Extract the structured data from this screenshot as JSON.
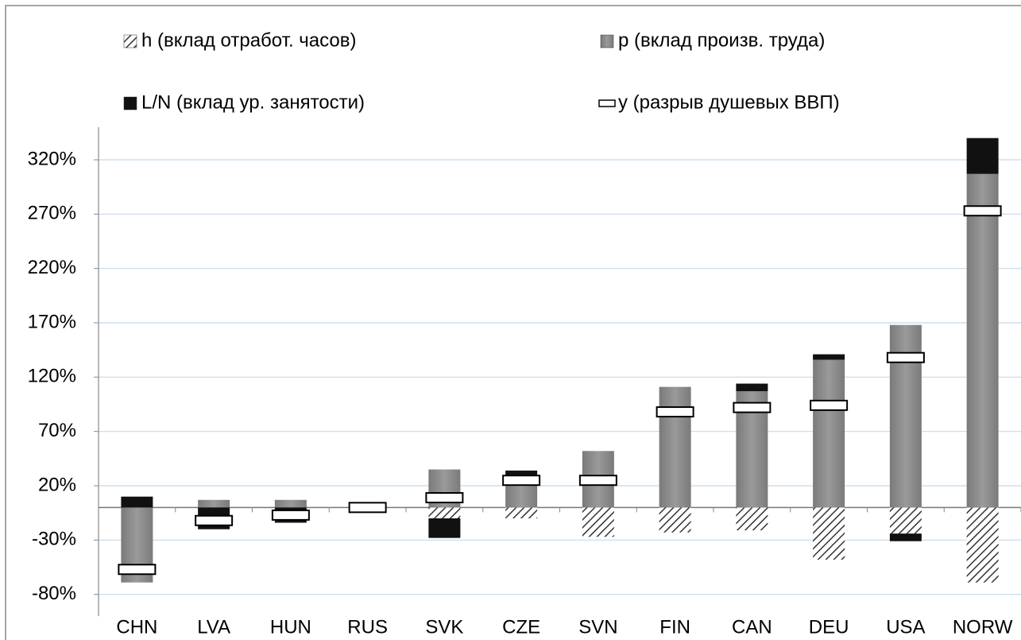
{
  "chart_data": {
    "type": "stacked_bar",
    "categories": [
      "CHN",
      "LVA",
      "HUN",
      "RUS",
      "SVK",
      "CZE",
      "SVN",
      "FIN",
      "CAN",
      "DEU",
      "USA",
      "NORW"
    ],
    "series": [
      {
        "name": "h (вклад отработ. часов)",
        "color": "#555555",
        "pattern": "hatch",
        "values": [
          0,
          0,
          0,
          0,
          -10,
          -10,
          -27,
          -23,
          -21,
          -48,
          -24,
          -69
        ]
      },
      {
        "name": "p (вклад произв. труда)",
        "color": "#8c8c8c",
        "values": [
          -69,
          7,
          7,
          0,
          35,
          29,
          52,
          111,
          107,
          136,
          168,
          307
        ]
      },
      {
        "name": "L/N (вклад ур. занятости)",
        "color": "#111111",
        "values": [
          10,
          -20,
          -14,
          0,
          -18,
          5,
          0,
          0,
          7,
          5,
          -7,
          33
        ]
      },
      {
        "name": "y (разрыв душевых ВВП)",
        "color": "#ffffff",
        "type": "marker",
        "values": [
          -57,
          -12,
          -7,
          0,
          9,
          25,
          25,
          88,
          92,
          94,
          138,
          273
        ]
      }
    ],
    "ylim": [
      -100,
      350
    ],
    "yticks": [
      {
        "value": -80,
        "label": "-80%"
      },
      {
        "value": -30,
        "label": "-30%"
      },
      {
        "value": 20,
        "label": "20%"
      },
      {
        "value": 70,
        "label": "70%"
      },
      {
        "value": 120,
        "label": "120%"
      },
      {
        "value": 170,
        "label": "170%"
      },
      {
        "value": 220,
        "label": "220%"
      },
      {
        "value": 270,
        "label": "270%"
      },
      {
        "value": 320,
        "label": "320%"
      }
    ],
    "grid": true,
    "legend": "top"
  }
}
